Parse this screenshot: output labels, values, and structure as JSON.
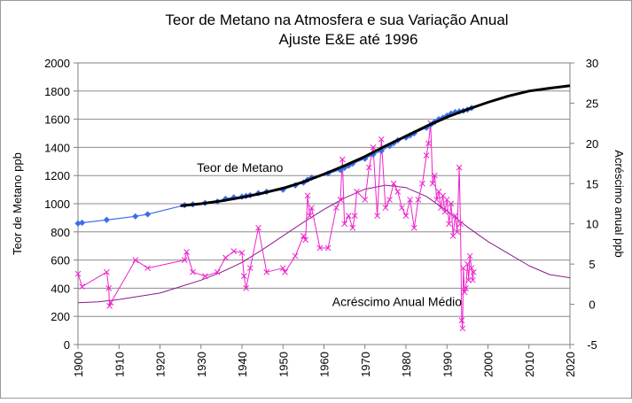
{
  "chart_data": {
    "type": "line",
    "title": "Teor de Metano na Atmosfera e sua Variação Anual",
    "subtitle": "Ajuste E&E até 1996",
    "xlabel": "",
    "ylabel_left": "Teor de Metano ppb",
    "ylabel_right": "Acréscimo anual ppb",
    "xlim": [
      1900,
      2020
    ],
    "ylim_left": [
      0,
      2000
    ],
    "ylim_right": [
      -5,
      30
    ],
    "x_ticks": [
      "1900",
      "1910",
      "1920",
      "1930",
      "1940",
      "1950",
      "1960",
      "1970",
      "1980",
      "1990",
      "2000",
      "2010",
      "2020"
    ],
    "y_left_ticks": [
      "0",
      "200",
      "400",
      "600",
      "800",
      "1000",
      "1200",
      "1400",
      "1600",
      "1800",
      "2000"
    ],
    "y_right_ticks": [
      "-5",
      "0",
      "5",
      "10",
      "15",
      "20",
      "25",
      "30"
    ],
    "grid": "horizontal",
    "legend": "none",
    "annotations": [
      {
        "text": "Teor de Metano",
        "x": 1929,
        "y": 1225,
        "axis": "left"
      },
      {
        "text": "Acréscimo Anual Médio",
        "x": 1962,
        "y": -0.2,
        "axis": "right"
      }
    ],
    "series": [
      {
        "name": "Teor de Metano",
        "axis": "left",
        "color": "#3a6ee8",
        "marker": "diamond",
        "points": [
          [
            1900,
            860
          ],
          [
            1901,
            865
          ],
          [
            1907,
            885
          ],
          [
            1914,
            910
          ],
          [
            1917,
            925
          ],
          [
            1926,
            990
          ],
          [
            1928,
            995
          ],
          [
            1931,
            1005
          ],
          [
            1934,
            1015
          ],
          [
            1936,
            1035
          ],
          [
            1938,
            1045
          ],
          [
            1940,
            1050
          ],
          [
            1941,
            1055
          ],
          [
            1942,
            1060
          ],
          [
            1944,
            1075
          ],
          [
            1946,
            1085
          ],
          [
            1950,
            1100
          ],
          [
            1953,
            1130
          ],
          [
            1955,
            1150
          ],
          [
            1956,
            1170
          ],
          [
            1957,
            1185
          ],
          [
            1961,
            1215
          ],
          [
            1964,
            1240
          ],
          [
            1965,
            1255
          ],
          [
            1966,
            1270
          ],
          [
            1967,
            1285
          ],
          [
            1970,
            1320
          ],
          [
            1972,
            1350
          ],
          [
            1974,
            1375
          ],
          [
            1976,
            1410
          ],
          [
            1977,
            1430
          ],
          [
            1978,
            1450
          ],
          [
            1980,
            1470
          ],
          [
            1981,
            1485
          ],
          [
            1982,
            1500
          ],
          [
            1985,
            1540
          ],
          [
            1986,
            1560
          ],
          [
            1987,
            1580
          ],
          [
            1988,
            1600
          ],
          [
            1989,
            1610
          ],
          [
            1990,
            1625
          ],
          [
            1991,
            1640
          ],
          [
            1992,
            1650
          ],
          [
            1993,
            1655
          ],
          [
            1994,
            1660
          ],
          [
            1995,
            1668
          ],
          [
            1996,
            1680
          ]
        ]
      },
      {
        "name": "Ajuste E&E",
        "axis": "left",
        "color": "#000000",
        "points": [
          [
            1925,
            985
          ],
          [
            1930,
            1000
          ],
          [
            1935,
            1020
          ],
          [
            1940,
            1045
          ],
          [
            1945,
            1075
          ],
          [
            1950,
            1110
          ],
          [
            1955,
            1155
          ],
          [
            1960,
            1210
          ],
          [
            1965,
            1270
          ],
          [
            1970,
            1335
          ],
          [
            1975,
            1410
          ],
          [
            1980,
            1480
          ],
          [
            1985,
            1550
          ],
          [
            1990,
            1615
          ],
          [
            1995,
            1670
          ],
          [
            2000,
            1720
          ],
          [
            2005,
            1765
          ],
          [
            2010,
            1800
          ],
          [
            2015,
            1820
          ],
          [
            2020,
            1838
          ]
        ]
      },
      {
        "name": "Acréscimo anual",
        "axis": "right",
        "color": "#ee22cc",
        "marker": "x",
        "points": [
          [
            1900,
            3.8
          ],
          [
            1901,
            2.2
          ],
          [
            1907,
            4.0
          ],
          [
            1907.5,
            2.0
          ],
          [
            1907.7,
            -0.2
          ],
          [
            1908,
            0.2
          ],
          [
            1914,
            5.5
          ],
          [
            1917,
            4.5
          ],
          [
            1926,
            5.5
          ],
          [
            1926.5,
            6.5
          ],
          [
            1928,
            4.0
          ],
          [
            1931,
            3.5
          ],
          [
            1934,
            4.0
          ],
          [
            1936,
            5.8
          ],
          [
            1938,
            6.6
          ],
          [
            1940,
            6.4
          ],
          [
            1940.5,
            3.5
          ],
          [
            1941,
            2.0
          ],
          [
            1942,
            4.5
          ],
          [
            1944,
            9.5
          ],
          [
            1946,
            4.0
          ],
          [
            1950,
            4.5
          ],
          [
            1950.5,
            4.0
          ],
          [
            1953,
            6.0
          ],
          [
            1955,
            8.5
          ],
          [
            1955.5,
            8.0
          ],
          [
            1956,
            13.5
          ],
          [
            1956.5,
            11.0
          ],
          [
            1957,
            12.0
          ],
          [
            1959,
            7.0
          ],
          [
            1961,
            7.0
          ],
          [
            1963,
            12.0
          ],
          [
            1964,
            13.0
          ],
          [
            1964.5,
            18.0
          ],
          [
            1965,
            10.0
          ],
          [
            1966,
            11.0
          ],
          [
            1967,
            9.5
          ],
          [
            1967.5,
            11.0
          ],
          [
            1968,
            14.0
          ],
          [
            1970,
            13.0
          ],
          [
            1971,
            17.0
          ],
          [
            1972,
            19.5
          ],
          [
            1973,
            11.0
          ],
          [
            1974,
            20.5
          ],
          [
            1975,
            12.0
          ],
          [
            1976,
            13.0
          ],
          [
            1977,
            15.0
          ],
          [
            1978,
            14.0
          ],
          [
            1979,
            12.0
          ],
          [
            1980,
            11.0
          ],
          [
            1981,
            13.0
          ],
          [
            1982,
            9.5
          ],
          [
            1983,
            13.0
          ],
          [
            1984,
            15.0
          ],
          [
            1985,
            18.5
          ],
          [
            1985.5,
            20.0
          ],
          [
            1986,
            22.5
          ],
          [
            1986.5,
            15.0
          ],
          [
            1987,
            16.0
          ],
          [
            1987.5,
            13.0
          ],
          [
            1988,
            14.0
          ],
          [
            1988.5,
            12.0
          ],
          [
            1989,
            13.5
          ],
          [
            1989.5,
            11.5
          ],
          [
            1990,
            13.0
          ],
          [
            1990.5,
            10.0
          ],
          [
            1991,
            12.5
          ],
          [
            1991.5,
            8.5
          ],
          [
            1992,
            11.0
          ],
          [
            1992.5,
            9.0
          ],
          [
            1993,
            17.0
          ],
          [
            1993.3,
            10.0
          ],
          [
            1993.6,
            -2.0
          ],
          [
            1993.8,
            -3.0
          ],
          [
            1994,
            4.5
          ],
          [
            1994.3,
            1.5
          ],
          [
            1994.6,
            2.0
          ],
          [
            1995,
            5.0
          ],
          [
            1995.3,
            3.0
          ],
          [
            1995.6,
            6.0
          ],
          [
            1996,
            4.5
          ],
          [
            1996.3,
            3.0
          ],
          [
            1996.5,
            4.0
          ]
        ]
      },
      {
        "name": "Acréscimo Anual Médio",
        "axis": "right",
        "color": "#8a1a8a",
        "points": [
          [
            1900,
            0.2
          ],
          [
            1905,
            0.3
          ],
          [
            1910,
            0.6
          ],
          [
            1915,
            1.0
          ],
          [
            1920,
            1.4
          ],
          [
            1925,
            2.2
          ],
          [
            1930,
            3.0
          ],
          [
            1935,
            4.0
          ],
          [
            1940,
            5.2
          ],
          [
            1945,
            6.8
          ],
          [
            1950,
            8.5
          ],
          [
            1955,
            10.2
          ],
          [
            1960,
            11.8
          ],
          [
            1965,
            13.2
          ],
          [
            1970,
            14.3
          ],
          [
            1975,
            14.8
          ],
          [
            1980,
            14.5
          ],
          [
            1985,
            13.4
          ],
          [
            1990,
            11.6
          ],
          [
            1995,
            9.6
          ],
          [
            2000,
            7.8
          ],
          [
            2005,
            6.3
          ],
          [
            2010,
            4.8
          ],
          [
            2015,
            3.7
          ],
          [
            2020,
            3.3
          ]
        ]
      }
    ]
  }
}
